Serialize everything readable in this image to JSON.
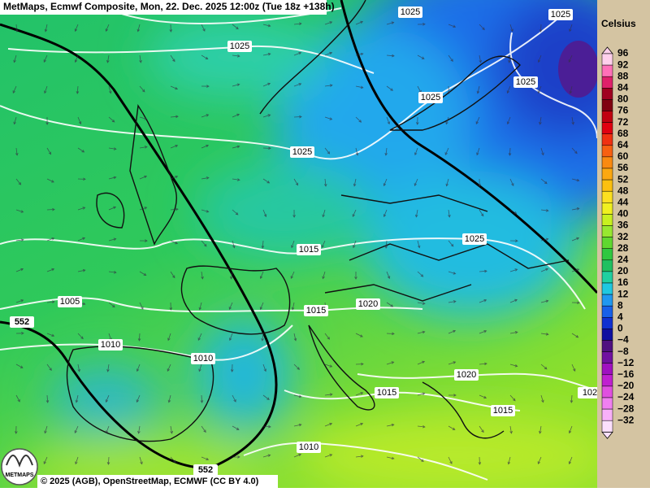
{
  "header": {
    "title": "MetMaps, Ecmwf Composite, Mon, 22. Dec. 2025 12:00z (Tue 18z +138h)"
  },
  "isobar_labels": [
    "1025",
    "1025",
    "1025",
    "1025",
    "1025",
    "1025",
    "1025",
    "1015",
    "1005",
    "1015",
    "1020",
    "552",
    "1010",
    "1010",
    "1020",
    "1015",
    "1015",
    "102",
    "1010",
    "552"
  ],
  "legend": {
    "unit": "Celsius",
    "entries": [
      {
        "label": "96",
        "color": "#ffd0ec"
      },
      {
        "label": "92",
        "color": "#ff70b8"
      },
      {
        "label": "88",
        "color": "#e0206a"
      },
      {
        "label": "84",
        "color": "#a00020"
      },
      {
        "label": "80",
        "color": "#800010"
      },
      {
        "label": "76",
        "color": "#c00010"
      },
      {
        "label": "72",
        "color": "#e00010"
      },
      {
        "label": "68",
        "color": "#f03010"
      },
      {
        "label": "64",
        "color": "#f86010"
      },
      {
        "label": "60",
        "color": "#fa8a10"
      },
      {
        "label": "56",
        "color": "#fca810"
      },
      {
        "label": "52",
        "color": "#fcc010"
      },
      {
        "label": "48",
        "color": "#fce020"
      },
      {
        "label": "44",
        "color": "#f0f020"
      },
      {
        "label": "40",
        "color": "#c8f020"
      },
      {
        "label": "36",
        "color": "#98e830"
      },
      {
        "label": "32",
        "color": "#60d830"
      },
      {
        "label": "28",
        "color": "#30c840"
      },
      {
        "label": "24",
        "color": "#20c060"
      },
      {
        "label": "20",
        "color": "#20d0a0"
      },
      {
        "label": "16",
        "color": "#20c8e0"
      },
      {
        "label": "12",
        "color": "#2098f0"
      },
      {
        "label": "8",
        "color": "#1860e8"
      },
      {
        "label": "4",
        "color": "#1030d0"
      },
      {
        "label": "0",
        "color": "#1010a0"
      },
      {
        "label": "−4",
        "color": "#501080"
      },
      {
        "label": "−8",
        "color": "#7010a0"
      },
      {
        "label": "−12",
        "color": "#a010c0"
      },
      {
        "label": "−16",
        "color": "#c020d0"
      },
      {
        "label": "−20",
        "color": "#e050e0"
      },
      {
        "label": "−24",
        "color": "#f080f0"
      },
      {
        "label": "−28",
        "color": "#f8b0f8"
      },
      {
        "label": "−32",
        "color": "#fce0fc"
      }
    ]
  },
  "footer": {
    "copyright": "© 2025 (AGB), OpenStreetMap, ECMWF (CC BY 4.0)",
    "logo": "METMAPS"
  }
}
